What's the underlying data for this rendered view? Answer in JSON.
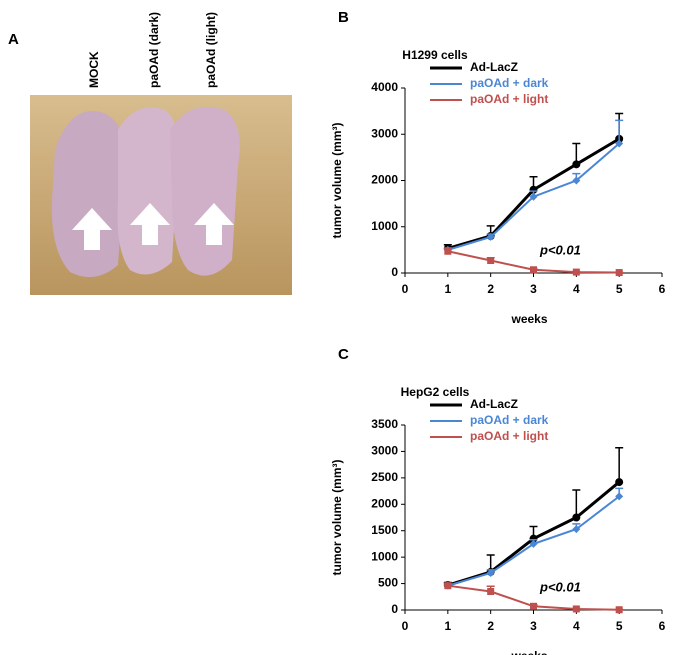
{
  "panel_a": {
    "label": "A",
    "labels": [
      "MOCK",
      "paOAd (dark)",
      "paOAd (light)"
    ]
  },
  "chart_data": [
    {
      "type": "line",
      "panel": "B",
      "title": "H1299 cells",
      "x_label": "weeks",
      "y_label": "tumor volume (mm³)",
      "annotation": "p<0.01",
      "x": [
        1,
        2,
        3,
        4,
        5
      ],
      "xlim": [
        0,
        6
      ],
      "xticks": [
        0,
        1,
        2,
        3,
        4,
        5,
        6
      ],
      "ylim": [
        0,
        4000
      ],
      "yticks": [
        0,
        1000,
        2000,
        3000,
        4000
      ],
      "series": [
        {
          "name": "Ad-LacZ",
          "color": "#000000",
          "marker": "circle",
          "values": [
            530,
            800,
            1800,
            2350,
            2900
          ],
          "errors": [
            80,
            220,
            280,
            450,
            550
          ]
        },
        {
          "name": "paOAd + dark",
          "color": "#4a86d4",
          "marker": "diamond",
          "values": [
            500,
            780,
            1650,
            2000,
            2800
          ],
          "errors": [
            40,
            60,
            120,
            150,
            500
          ]
        },
        {
          "name": "paOAd + light",
          "color": "#c0504d",
          "marker": "square",
          "values": [
            470,
            270,
            70,
            20,
            10
          ],
          "errors": [
            40,
            60,
            30,
            10,
            5
          ]
        }
      ]
    },
    {
      "type": "line",
      "panel": "C",
      "title": "HepG2 cells",
      "x_label": "weeks",
      "y_label": "tumor volume (mm³)",
      "annotation": "p<0.01",
      "x": [
        1,
        2,
        3,
        4,
        5
      ],
      "xlim": [
        0,
        6
      ],
      "xticks": [
        0,
        1,
        2,
        3,
        4,
        5,
        6
      ],
      "ylim": [
        0,
        3500
      ],
      "yticks": [
        0,
        500,
        1000,
        1500,
        2000,
        2500,
        3000,
        3500
      ],
      "series": [
        {
          "name": "Ad-LacZ",
          "color": "#000000",
          "marker": "circle",
          "values": [
            470,
            720,
            1350,
            1750,
            2420
          ],
          "errors": [
            50,
            320,
            230,
            520,
            650
          ]
        },
        {
          "name": "paOAd + dark",
          "color": "#4a86d4",
          "marker": "diamond",
          "values": [
            460,
            700,
            1250,
            1530,
            2150
          ],
          "errors": [
            30,
            60,
            80,
            100,
            150
          ]
        },
        {
          "name": "paOAd + light",
          "color": "#c0504d",
          "marker": "square",
          "values": [
            460,
            350,
            70,
            20,
            5
          ],
          "errors": [
            40,
            100,
            30,
            10,
            5
          ]
        }
      ]
    }
  ]
}
